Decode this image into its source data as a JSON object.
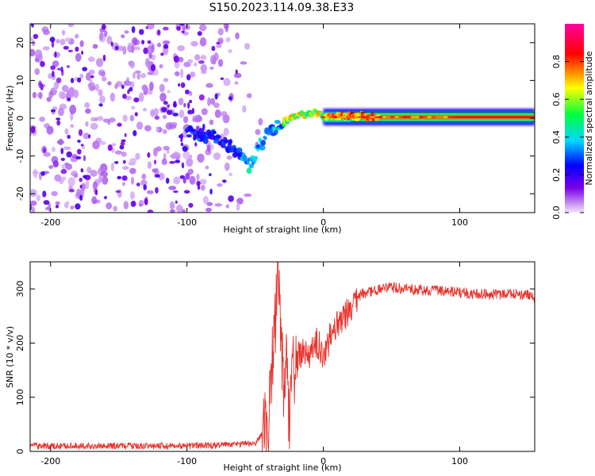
{
  "title": "S150.2023.114.09.38.E33",
  "chart_data": [
    {
      "type": "heatmap",
      "xlabel": "Height of straight line (km)",
      "ylabel": "Frequency (Hz)",
      "xlim": [
        -215,
        155
      ],
      "ylim": [
        -25,
        25
      ],
      "xticks": [
        -200,
        -100,
        0,
        100
      ],
      "yticks": [
        -20,
        -10,
        0,
        10,
        20
      ],
      "colorbar": {
        "label": "Normalized spectral amplitude",
        "range": [
          0.0,
          1.0
        ],
        "ticks": [
          0.0,
          0.2,
          0.4,
          0.6,
          0.8
        ],
        "tick_labels": [
          "0.0",
          "0.2",
          "0.4",
          "0.6",
          "0.8"
        ],
        "colormap": [
          "#f4e6fa",
          "#7a00e8",
          "#0000ff",
          "#00d8ff",
          "#00ff3c",
          "#ffff00",
          "#ff0000",
          "#ff00a0"
        ]
      },
      "ridge": [
        {
          "x": -100,
          "y": -4
        },
        {
          "x": -80,
          "y": -5
        },
        {
          "x": -70,
          "y": -7
        },
        {
          "x": -60,
          "y": -10
        },
        {
          "x": -55,
          "y": -13
        },
        {
          "x": -48,
          "y": -8
        },
        {
          "x": -40,
          "y": -4
        },
        {
          "x": -32,
          "y": -2
        },
        {
          "x": -22,
          "y": 0.5
        },
        {
          "x": -12,
          "y": 1
        },
        {
          "x": -5,
          "y": 1.5
        },
        {
          "x": 0,
          "y": 0.5
        },
        {
          "x": 20,
          "y": 0.5
        },
        {
          "x": 60,
          "y": 0.3
        },
        {
          "x": 100,
          "y": 0.2
        },
        {
          "x": 155,
          "y": 0.2
        }
      ]
    },
    {
      "type": "line",
      "xlabel": "Height of straight line (km)",
      "ylabel": "SNR (10 * v/v)",
      "xlim": [
        -215,
        155
      ],
      "ylim": [
        0,
        350
      ],
      "xticks": [
        -200,
        -100,
        0,
        100
      ],
      "yticks": [
        0,
        100,
        200,
        300
      ],
      "color": "#e8302a",
      "series": [
        {
          "x": [
            -215,
            -180,
            -140,
            -100,
            -70,
            -50,
            -40,
            -38,
            -35,
            -33,
            -31,
            -29,
            -27,
            -25,
            -23,
            -20,
            -15,
            -10,
            -5,
            0,
            5,
            10,
            15,
            20,
            25,
            30,
            40,
            50,
            60,
            70,
            80,
            90,
            100,
            110,
            120,
            130,
            140,
            150,
            155
          ],
          "y": [
            10,
            10,
            10,
            10,
            12,
            15,
            50,
            150,
            240,
            345,
            200,
            120,
            180,
            60,
            150,
            160,
            190,
            175,
            200,
            180,
            210,
            230,
            250,
            268,
            285,
            292,
            298,
            303,
            300,
            298,
            297,
            295,
            293,
            291,
            290,
            289,
            290,
            290,
            282
          ]
        }
      ]
    }
  ]
}
